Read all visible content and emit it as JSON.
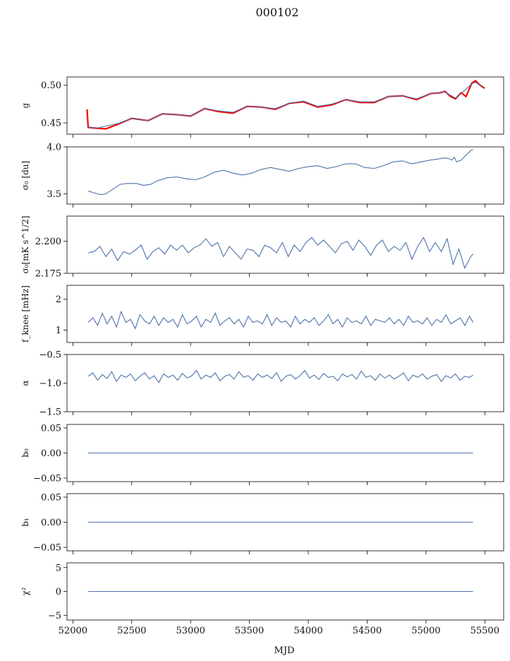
{
  "figure": {
    "title": "000102",
    "xlabel": "MJD"
  },
  "chart_data": [
    {
      "type": "line",
      "ylabel": "g",
      "xlim": [
        51950,
        55660
      ],
      "ylim": [
        0.435,
        0.511
      ],
      "yticks": [
        "0.45",
        "0.50"
      ],
      "ytick_values": [
        0.45,
        0.5
      ],
      "series": [
        {
          "color": "#ff0000",
          "x": [
            52120,
            52130,
            52200,
            52280,
            52380,
            52500,
            52640,
            52760,
            52880,
            53000,
            53120,
            53240,
            53360,
            53480,
            53600,
            53720,
            53840,
            53960,
            54080,
            54200,
            54320,
            54440,
            54560,
            54680,
            54800,
            54920,
            55040,
            55120,
            55160,
            55210,
            55250,
            55300,
            55340,
            55390,
            55420,
            55460,
            55480,
            55500
          ],
          "y": [
            0.468,
            0.444,
            0.443,
            0.442,
            0.448,
            0.456,
            0.453,
            0.462,
            0.461,
            0.459,
            0.469,
            0.465,
            0.463,
            0.472,
            0.471,
            0.468,
            0.476,
            0.478,
            0.471,
            0.474,
            0.481,
            0.477,
            0.477,
            0.485,
            0.486,
            0.481,
            0.489,
            0.49,
            0.492,
            0.485,
            0.482,
            0.49,
            0.485,
            0.503,
            0.506,
            0.5,
            0.498,
            0.496
          ]
        },
        {
          "color": "#4c72a8",
          "x": [
            52120,
            52200,
            52380,
            52500,
            52640,
            52760,
            52880,
            53000,
            53120,
            53240,
            53360,
            53480,
            53600,
            53720,
            53840,
            53960,
            54080,
            54200,
            54320,
            54440,
            54560,
            54680,
            54800,
            54920,
            55040,
            55160,
            55250,
            55300,
            55390,
            55420,
            55480
          ],
          "y": [
            0.445,
            0.443,
            0.449,
            0.456,
            0.453,
            0.462,
            0.461,
            0.459,
            0.469,
            0.466,
            0.464,
            0.472,
            0.471,
            0.469,
            0.476,
            0.479,
            0.472,
            0.475,
            0.481,
            0.478,
            0.478,
            0.485,
            0.486,
            0.482,
            0.489,
            0.491,
            0.483,
            0.489,
            0.502,
            0.504,
            0.498
          ]
        }
      ]
    },
    {
      "type": "line",
      "ylabel": "σ₀ [du]",
      "xlim": [
        51950,
        55660
      ],
      "ylim": [
        3.39,
        4.0
      ],
      "yticks": [
        "3.5",
        "4.0"
      ],
      "ytick_values": [
        3.5,
        4.0
      ],
      "series": [
        {
          "color": "#4c72a8",
          "x": [
            52130,
            52180,
            52240,
            52280,
            52340,
            52400,
            52460,
            52540,
            52600,
            52660,
            52720,
            52800,
            52880,
            52960,
            53040,
            53120,
            53200,
            53280,
            53360,
            53440,
            53520,
            53600,
            53680,
            53760,
            53840,
            53920,
            54000,
            54080,
            54160,
            54240,
            54320,
            54400,
            54480,
            54560,
            54640,
            54720,
            54800,
            54880,
            54960,
            55040,
            55100,
            55140,
            55180,
            55220,
            55240,
            55260,
            55300,
            55340,
            55380,
            55400
          ],
          "y": [
            3.53,
            3.51,
            3.49,
            3.5,
            3.55,
            3.6,
            3.61,
            3.61,
            3.59,
            3.6,
            3.64,
            3.67,
            3.68,
            3.66,
            3.65,
            3.68,
            3.73,
            3.75,
            3.72,
            3.7,
            3.72,
            3.76,
            3.78,
            3.76,
            3.74,
            3.77,
            3.79,
            3.8,
            3.77,
            3.79,
            3.82,
            3.82,
            3.78,
            3.77,
            3.8,
            3.84,
            3.85,
            3.82,
            3.84,
            3.86,
            3.87,
            3.88,
            3.88,
            3.86,
            3.89,
            3.84,
            3.86,
            3.91,
            3.96,
            3.97
          ]
        }
      ]
    },
    {
      "type": "line",
      "ylabel": "σ₀[mK s^1/2]",
      "xlim": [
        51950,
        55660
      ],
      "ylim": [
        2.175,
        2.2197
      ],
      "yticks": [
        "2.175",
        "2.200"
      ],
      "ytick_values": [
        2.175,
        2.2
      ],
      "series": [
        {
          "color": "#4c72a8",
          "x": [
            52130,
            52180,
            52230,
            52280,
            52330,
            52380,
            52430,
            52480,
            52530,
            52580,
            52630,
            52680,
            52730,
            52780,
            52830,
            52880,
            52930,
            52980,
            53030,
            53080,
            53130,
            53180,
            53230,
            53280,
            53330,
            53380,
            53430,
            53480,
            53530,
            53580,
            53630,
            53680,
            53730,
            53780,
            53830,
            53880,
            53930,
            53980,
            54030,
            54080,
            54130,
            54180,
            54230,
            54280,
            54330,
            54380,
            54430,
            54480,
            54530,
            54580,
            54630,
            54680,
            54730,
            54780,
            54830,
            54880,
            54930,
            54980,
            55030,
            55080,
            55130,
            55180,
            55230,
            55280,
            55330,
            55380,
            55400
          ],
          "y": [
            2.191,
            2.192,
            2.196,
            2.188,
            2.194,
            2.185,
            2.192,
            2.19,
            2.193,
            2.197,
            2.186,
            2.192,
            2.195,
            2.19,
            2.197,
            2.193,
            2.197,
            2.191,
            2.195,
            2.197,
            2.202,
            2.196,
            2.199,
            2.188,
            2.196,
            2.191,
            2.186,
            2.194,
            2.193,
            2.188,
            2.197,
            2.195,
            2.191,
            2.199,
            2.188,
            2.197,
            2.192,
            2.199,
            2.203,
            2.197,
            2.201,
            2.196,
            2.191,
            2.198,
            2.2,
            2.193,
            2.201,
            2.196,
            2.189,
            2.197,
            2.201,
            2.192,
            2.196,
            2.193,
            2.199,
            2.186,
            2.196,
            2.203,
            2.192,
            2.199,
            2.192,
            2.202,
            2.182,
            2.194,
            2.179,
            2.188,
            2.19
          ]
        }
      ]
    },
    {
      "type": "line",
      "ylabel": "f_knee [mHz]",
      "xlim": [
        51950,
        55660
      ],
      "ylim": [
        0.6,
        2.45
      ],
      "yticks": [
        "1",
        "2"
      ],
      "ytick_values": [
        1,
        2
      ],
      "series": [
        {
          "color": "#4c72a8",
          "x": [
            52130,
            52170,
            52210,
            52250,
            52290,
            52330,
            52370,
            52410,
            52450,
            52490,
            52530,
            52570,
            52610,
            52650,
            52690,
            52730,
            52770,
            52810,
            52850,
            52890,
            52930,
            52970,
            53010,
            53050,
            53090,
            53130,
            53170,
            53210,
            53250,
            53290,
            53330,
            53370,
            53410,
            53450,
            53490,
            53530,
            53570,
            53610,
            53650,
            53690,
            53730,
            53770,
            53810,
            53850,
            53890,
            53930,
            53970,
            54010,
            54050,
            54090,
            54130,
            54170,
            54210,
            54250,
            54290,
            54330,
            54370,
            54410,
            54450,
            54490,
            54530,
            54570,
            54610,
            54650,
            54690,
            54730,
            54770,
            54810,
            54850,
            54890,
            54930,
            54970,
            55010,
            55050,
            55090,
            55130,
            55170,
            55210,
            55250,
            55290,
            55330,
            55370,
            55400
          ],
          "y": [
            1.25,
            1.4,
            1.15,
            1.55,
            1.2,
            1.45,
            1.1,
            1.6,
            1.25,
            1.35,
            1.05,
            1.5,
            1.3,
            1.2,
            1.45,
            1.15,
            1.4,
            1.25,
            1.35,
            1.1,
            1.5,
            1.2,
            1.3,
            1.45,
            1.1,
            1.35,
            1.25,
            1.55,
            1.15,
            1.3,
            1.4,
            1.2,
            1.35,
            1.1,
            1.45,
            1.25,
            1.3,
            1.2,
            1.5,
            1.15,
            1.4,
            1.25,
            1.3,
            1.1,
            1.45,
            1.2,
            1.35,
            1.25,
            1.4,
            1.15,
            1.3,
            1.5,
            1.2,
            1.35,
            1.1,
            1.4,
            1.25,
            1.3,
            1.2,
            1.45,
            1.15,
            1.35,
            1.3,
            1.25,
            1.4,
            1.2,
            1.35,
            1.15,
            1.45,
            1.25,
            1.3,
            1.2,
            1.4,
            1.15,
            1.35,
            1.25,
            1.5,
            1.2,
            1.3,
            1.4,
            1.15,
            1.45,
            1.25
          ]
        }
      ]
    },
    {
      "type": "line",
      "ylabel": "α",
      "xlim": [
        51950,
        55660
      ],
      "ylim": [
        -1.5,
        -0.5
      ],
      "yticks": [
        "−1.5",
        "−1.0",
        "−0.5"
      ],
      "ytick_values": [
        -1.5,
        -1.0,
        -0.5
      ],
      "series": [
        {
          "color": "#4c72a8",
          "x": [
            52130,
            52170,
            52210,
            52250,
            52290,
            52330,
            52370,
            52410,
            52450,
            52490,
            52530,
            52570,
            52610,
            52650,
            52690,
            52730,
            52770,
            52810,
            52850,
            52890,
            52930,
            52970,
            53010,
            53050,
            53090,
            53130,
            53170,
            53210,
            53250,
            53290,
            53330,
            53370,
            53410,
            53450,
            53490,
            53530,
            53570,
            53610,
            53650,
            53690,
            53730,
            53770,
            53810,
            53850,
            53890,
            53930,
            53970,
            54010,
            54050,
            54090,
            54130,
            54170,
            54210,
            54250,
            54290,
            54330,
            54370,
            54410,
            54450,
            54490,
            54530,
            54570,
            54610,
            54650,
            54690,
            54730,
            54770,
            54810,
            54850,
            54890,
            54930,
            54970,
            55010,
            55050,
            55090,
            55130,
            55170,
            55210,
            55250,
            55290,
            55330,
            55370,
            55400
          ],
          "y": [
            -0.88,
            -0.82,
            -0.95,
            -0.85,
            -0.92,
            -0.8,
            -0.97,
            -0.86,
            -0.9,
            -0.84,
            -0.96,
            -0.88,
            -0.82,
            -0.93,
            -0.87,
            -0.99,
            -0.84,
            -0.9,
            -0.86,
            -0.95,
            -0.83,
            -0.91,
            -0.87,
            -0.78,
            -0.93,
            -0.86,
            -0.9,
            -0.82,
            -0.96,
            -0.88,
            -0.85,
            -0.93,
            -0.8,
            -0.9,
            -0.87,
            -0.95,
            -0.84,
            -0.9,
            -0.86,
            -0.92,
            -0.82,
            -0.97,
            -0.88,
            -0.85,
            -0.93,
            -0.87,
            -0.78,
            -0.91,
            -0.86,
            -0.94,
            -0.83,
            -0.9,
            -0.88,
            -0.96,
            -0.84,
            -0.89,
            -0.85,
            -0.93,
            -0.79,
            -0.9,
            -0.87,
            -0.95,
            -0.84,
            -0.91,
            -0.86,
            -0.93,
            -0.88,
            -0.82,
            -0.96,
            -0.86,
            -0.9,
            -0.84,
            -0.93,
            -0.88,
            -0.85,
            -0.97,
            -0.87,
            -0.91,
            -0.84,
            -0.95,
            -0.88,
            -0.9,
            -0.86
          ]
        }
      ]
    },
    {
      "type": "line",
      "ylabel": "b₀",
      "xlim": [
        51950,
        55660
      ],
      "ylim": [
        -0.057,
        0.057
      ],
      "yticks": [
        "−0.05",
        "0.00",
        "0.05"
      ],
      "ytick_values": [
        -0.05,
        0.0,
        0.05
      ],
      "series": [
        {
          "color": "#4c72a8",
          "x": [
            52130,
            55400
          ],
          "y": [
            0,
            0
          ]
        }
      ]
    },
    {
      "type": "line",
      "ylabel": "b₁",
      "xlim": [
        51950,
        55660
      ],
      "ylim": [
        -0.057,
        0.057
      ],
      "yticks": [
        "−0.05",
        "0.00",
        "0.05"
      ],
      "ytick_values": [
        -0.05,
        0.0,
        0.05
      ],
      "series": [
        {
          "color": "#4c72a8",
          "x": [
            52130,
            55400
          ],
          "y": [
            0,
            0
          ]
        }
      ]
    },
    {
      "type": "line",
      "ylabel": "χ²",
      "xlim": [
        51950,
        55660
      ],
      "ylim": [
        -6.0,
        6.0
      ],
      "yticks": [
        "−5",
        "0",
        "5"
      ],
      "ytick_values": [
        -5,
        0,
        5
      ],
      "xticks": [
        "52000",
        "52500",
        "53000",
        "53500",
        "54000",
        "54500",
        "55000",
        "55500"
      ],
      "xtick_values": [
        52000,
        52500,
        53000,
        53500,
        54000,
        54500,
        55000,
        55500
      ],
      "series": [
        {
          "color": "#4c72a8",
          "x": [
            52130,
            55400
          ],
          "y": [
            0,
            0
          ]
        }
      ]
    }
  ]
}
